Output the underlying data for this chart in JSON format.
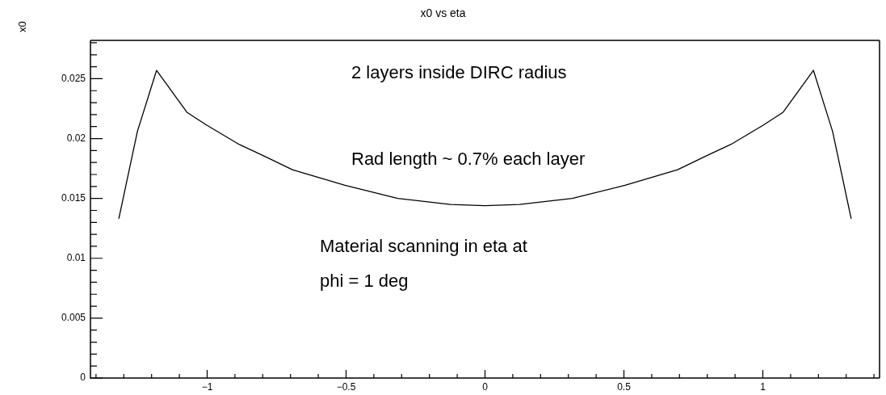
{
  "chart_data": {
    "type": "line",
    "title": "x0 vs eta",
    "ylabel": "x0",
    "x": [
      -1.318,
      -1.251,
      -1.182,
      -1.073,
      -1.0,
      -0.884,
      -0.8,
      -0.693,
      -0.504,
      -0.314,
      -0.124,
      0,
      0.124,
      0.314,
      0.504,
      0.693,
      0.8,
      0.884,
      1.0,
      1.073,
      1.182,
      1.251,
      1.318
    ],
    "series": [
      {
        "color": "#000000",
        "values": [
          0.0133,
          0.0206,
          0.0257,
          0.0222,
          0.0211,
          0.0195,
          0.0186,
          0.0174,
          0.0161,
          0.015,
          0.0145,
          0.0144,
          0.0145,
          0.015,
          0.0161,
          0.0174,
          0.0186,
          0.0195,
          0.0211,
          0.0222,
          0.0257,
          0.0206,
          0.0133
        ]
      }
    ],
    "xlim": [
      -1.42,
      1.42
    ],
    "ylim": [
      0,
      0.0282
    ],
    "xticks": [
      {
        "value": -1.4,
        "label": null
      },
      {
        "value": -1.3,
        "label": null
      },
      {
        "value": -1.2,
        "label": null
      },
      {
        "value": -1.1,
        "label": null
      },
      {
        "value": -1,
        "label": "−1"
      },
      {
        "value": -0.9,
        "label": null
      },
      {
        "value": -0.8,
        "label": null
      },
      {
        "value": -0.7,
        "label": null
      },
      {
        "value": -0.6,
        "label": null
      },
      {
        "value": -0.5,
        "label": "−0.5"
      },
      {
        "value": -0.4,
        "label": null
      },
      {
        "value": -0.3,
        "label": null
      },
      {
        "value": -0.2,
        "label": null
      },
      {
        "value": -0.1,
        "label": null
      },
      0,
      {
        "value": 0.1,
        "label": null
      },
      {
        "value": 0.2,
        "label": null
      },
      {
        "value": 0.3,
        "label": null
      },
      {
        "value": 0.4,
        "label": null
      },
      0.5,
      {
        "value": 0.6,
        "label": null
      },
      {
        "value": 0.7,
        "label": null
      },
      {
        "value": 0.8,
        "label": null
      },
      {
        "value": 0.9,
        "label": null
      },
      1,
      {
        "value": 1.1,
        "label": null
      },
      {
        "value": 1.2,
        "label": null
      },
      {
        "value": 1.3,
        "label": null
      },
      {
        "value": 1.4,
        "label": null
      }
    ],
    "yticks": [
      0,
      {
        "value": 0.001,
        "label": null
      },
      {
        "value": 0.002,
        "label": null
      },
      {
        "value": 0.003,
        "label": null
      },
      {
        "value": 0.004,
        "label": null
      },
      0.005,
      {
        "value": 0.006,
        "label": null
      },
      {
        "value": 0.007,
        "label": null
      },
      {
        "value": 0.008,
        "label": null
      },
      {
        "value": 0.009,
        "label": null
      },
      0.01,
      {
        "value": 0.011,
        "label": null
      },
      {
        "value": 0.012,
        "label": null
      },
      {
        "value": 0.013,
        "label": null
      },
      {
        "value": 0.014,
        "label": null
      },
      0.015,
      {
        "value": 0.016,
        "label": null
      },
      {
        "value": 0.017,
        "label": null
      },
      {
        "value": 0.018,
        "label": null
      },
      {
        "value": 0.019,
        "label": null
      },
      0.02,
      {
        "value": 0.021,
        "label": null
      },
      {
        "value": 0.022,
        "label": null
      },
      {
        "value": 0.023,
        "label": null
      },
      {
        "value": 0.024,
        "label": null
      },
      0.025,
      {
        "value": 0.026,
        "label": null
      },
      {
        "value": 0.027,
        "label": null
      },
      {
        "value": 0.028,
        "label": null
      }
    ],
    "annotations": [
      "2 layers inside DIRC radius",
      "Rad length ~ 0.7% each layer",
      "Material scanning in eta at\nphi = 1 deg"
    ]
  }
}
